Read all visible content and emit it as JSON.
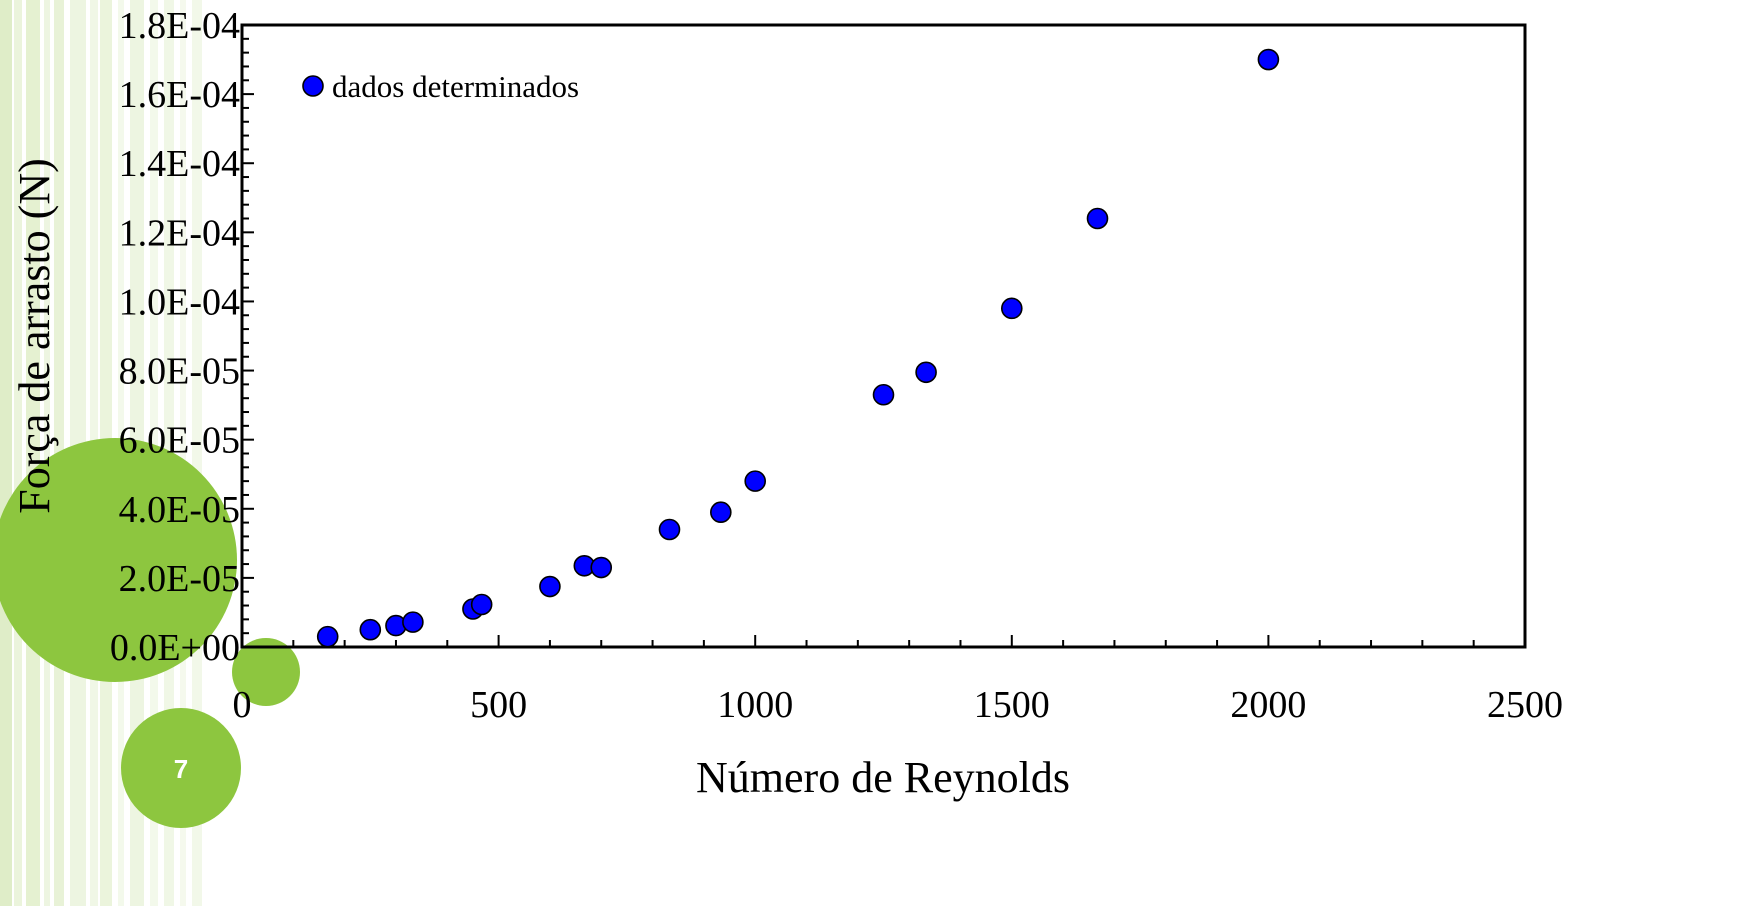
{
  "slide": {
    "page_number": "7",
    "accent_color": "#8dc63f",
    "stripe_color": "#c5df9a"
  },
  "chart_data": {
    "type": "scatter",
    "title": "",
    "xlabel": "Número de Reynolds",
    "ylabel": "Força de arrasto (N)",
    "xlim": [
      0,
      2500
    ],
    "ylim": [
      0,
      0.00018
    ],
    "x_ticks": [
      0,
      500,
      1000,
      1500,
      2000,
      2500
    ],
    "x_tick_labels": [
      "0",
      "500",
      "1000",
      "1500",
      "2000",
      "2500"
    ],
    "y_ticks": [
      0,
      2e-05,
      4e-05,
      6e-05,
      8e-05,
      0.0001,
      0.00012,
      0.00014,
      0.00016,
      0.00018
    ],
    "y_tick_labels": [
      "0.0E+00",
      "2.0E-05",
      "4.0E-05",
      "6.0E-05",
      "8.0E-05",
      "1.0E-04",
      "1.2E-04",
      "1.4E-04",
      "1.6E-04",
      "1.8E-04"
    ],
    "grid": false,
    "legend_position": "top-left",
    "series": [
      {
        "name": "dados determinados",
        "color": "#0000ff",
        "points": [
          [
            167,
            3e-06
          ],
          [
            250,
            5e-06
          ],
          [
            300,
            6.2e-06
          ],
          [
            333,
            7.2e-06
          ],
          [
            450,
            1.1e-05
          ],
          [
            467,
            1.23e-05
          ],
          [
            600,
            1.75e-05
          ],
          [
            667,
            2.35e-05
          ],
          [
            700,
            2.3e-05
          ],
          [
            833,
            3.4e-05
          ],
          [
            933,
            3.9e-05
          ],
          [
            1000,
            4.8e-05
          ],
          [
            1250,
            7.3e-05
          ],
          [
            1333,
            7.95e-05
          ],
          [
            1500,
            9.8e-05
          ],
          [
            1667,
            0.000124
          ],
          [
            2000,
            0.00017
          ]
        ]
      }
    ]
  }
}
